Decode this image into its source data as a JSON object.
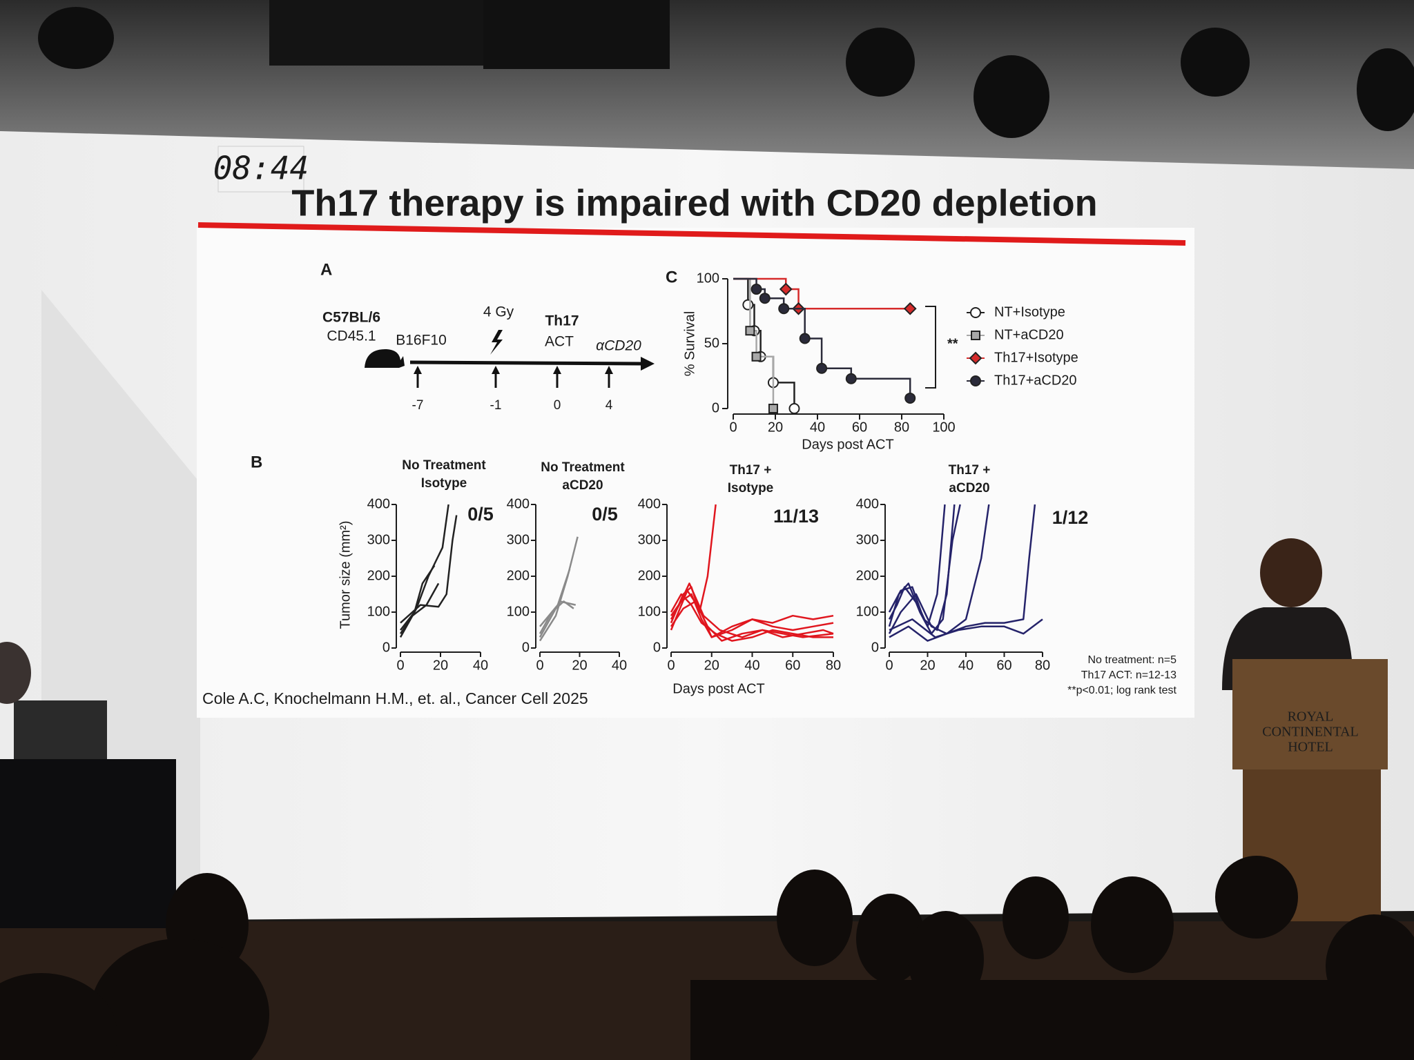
{
  "timer": "08:44",
  "slide": {
    "title": "Th17 therapy is impaired with CD20 depletion",
    "citation": "Cole A.C, Knochelmann H.M., et. al., Cancer Cell 2025",
    "notes": [
      "No treatment: n=5",
      "Th17 ACT: n=12-13",
      "**p<0.01; log rank test"
    ],
    "panel_a": {
      "label": "A",
      "strain": "C57BL/6",
      "strain_detail": "CD45.1",
      "events": [
        {
          "label": "B16F10",
          "day": -7
        },
        {
          "label": "4 Gy",
          "day": -1
        },
        {
          "label": "Th17",
          "sublabel": "ACT",
          "day": 0
        },
        {
          "label": "αCD20",
          "day": 4
        }
      ]
    },
    "panel_c": {
      "label": "C",
      "type": "step",
      "ylabel": "% Survival",
      "xlabel": "Days post ACT",
      "xlim": [
        0,
        100
      ],
      "xticks": [
        0,
        20,
        40,
        60,
        80,
        100
      ],
      "ylim": [
        0,
        100
      ],
      "yticks": [
        0,
        50,
        100
      ],
      "significance": "**",
      "series": [
        {
          "name": "NT+Isotype",
          "color": "#ffffff",
          "marker": "circle",
          "x": [
            0,
            7,
            10,
            13,
            19,
            29
          ],
          "values": [
            100,
            80,
            60,
            40,
            20,
            0
          ]
        },
        {
          "name": "NT+aCD20",
          "color": "#a8a8a8",
          "marker": "square",
          "x": [
            0,
            8,
            11,
            19
          ],
          "values": [
            100,
            60,
            40,
            0
          ]
        },
        {
          "name": "Th17+Isotype",
          "color": "#d62b2b",
          "marker": "diamond",
          "x": [
            0,
            25,
            31,
            84
          ],
          "values": [
            100,
            92,
            77,
            77
          ]
        },
        {
          "name": "Th17+aCD20",
          "color": "#2b2b3a",
          "marker": "circle",
          "x": [
            0,
            11,
            15,
            24,
            34,
            42,
            56,
            84
          ],
          "values": [
            100,
            92,
            85,
            77,
            54,
            31,
            23,
            8
          ]
        }
      ]
    },
    "panel_b": {
      "label": "B",
      "ylabel": "Tumor size (mm²)",
      "xlabel": "Days post ACT",
      "ylim": [
        0,
        400
      ],
      "yticks": [
        0,
        100,
        200,
        300,
        400
      ],
      "charts": [
        {
          "type": "line",
          "title": [
            "No Treatment",
            "Isotype"
          ],
          "ratio": "0/5",
          "ratio_color": "#1c1c1c",
          "color": "#222222",
          "xlim": [
            0,
            40
          ],
          "xticks": [
            0,
            20,
            40
          ],
          "lines": [
            {
              "x": [
                0,
                7,
                11,
                17
              ],
              "values": [
                50,
                100,
                180,
                230
              ]
            },
            {
              "x": [
                0,
                8,
                14,
                21,
                24
              ],
              "values": [
                30,
                110,
                200,
                280,
                400
              ]
            },
            {
              "x": [
                0,
                10,
                19,
                23,
                26,
                28
              ],
              "values": [
                70,
                120,
                115,
                150,
                300,
                370
              ]
            },
            {
              "x": [
                0,
                6,
                13,
                19
              ],
              "values": [
                40,
                90,
                120,
                180
              ]
            }
          ]
        },
        {
          "type": "line",
          "title": [
            "No Treatment",
            "aCD20"
          ],
          "ratio": "0/5",
          "ratio_color": "#1c1c1c",
          "color": "#8a8a8a",
          "xlim": [
            0,
            40
          ],
          "xticks": [
            0,
            20,
            40
          ],
          "lines": [
            {
              "x": [
                0,
                6,
                12,
                17
              ],
              "values": [
                40,
                100,
                130,
                110
              ]
            },
            {
              "x": [
                0,
                8,
                14,
                19
              ],
              "values": [
                20,
                90,
                200,
                310
              ]
            },
            {
              "x": [
                0,
                9,
                15
              ],
              "values": [
                60,
                120,
                220
              ]
            },
            {
              "x": [
                0,
                10,
                18
              ],
              "values": [
                30,
                130,
                120
              ]
            }
          ]
        },
        {
          "type": "line",
          "title": [
            "Th17 +",
            "Isotype"
          ],
          "ratio": "11/13",
          "ratio_color": "#d0202a",
          "color": "#e0161e",
          "xlim": [
            0,
            80
          ],
          "xticks": [
            0,
            20,
            40,
            60,
            80
          ],
          "lines": [
            {
              "x": [
                0,
                6,
                10,
                14,
                18,
                22
              ],
              "values": [
                70,
                150,
                170,
                100,
                200,
                400
              ]
            },
            {
              "x": [
                0,
                5,
                10,
                15,
                20,
                30,
                40,
                50,
                60,
                70,
                80
              ],
              "values": [
                90,
                130,
                150,
                80,
                30,
                60,
                80,
                70,
                90,
                80,
                90
              ]
            },
            {
              "x": [
                0,
                6,
                12,
                18,
                25,
                35,
                45,
                55,
                65,
                80
              ],
              "values": [
                60,
                110,
                130,
                60,
                20,
                40,
                50,
                40,
                30,
                40
              ]
            },
            {
              "x": [
                0,
                5,
                10,
                15,
                22,
                30,
                40,
                50,
                60,
                70,
                80
              ],
              "values": [
                100,
                150,
                120,
                70,
                40,
                20,
                30,
                50,
                40,
                30,
                30
              ]
            },
            {
              "x": [
                0,
                8,
                14,
                20,
                30,
                40,
                50,
                60,
                70,
                80
              ],
              "values": [
                50,
                160,
                110,
                30,
                50,
                80,
                60,
                50,
                60,
                70
              ]
            },
            {
              "x": [
                0,
                4,
                9,
                16,
                24,
                35,
                45,
                55,
                65,
                75,
                80
              ],
              "values": [
                80,
                120,
                180,
                90,
                50,
                30,
                50,
                30,
                40,
                50,
                40
              ]
            }
          ]
        },
        {
          "type": "line",
          "title": [
            "Th17 +",
            "aCD20"
          ],
          "ratio": "1/12",
          "ratio_color": "#2c2a5e",
          "color": "#25236a",
          "xlim": [
            0,
            80
          ],
          "xticks": [
            0,
            20,
            40,
            60,
            80
          ],
          "lines": [
            {
              "x": [
                0,
                6,
                12,
                18,
                25,
                30,
                34
              ],
              "values": [
                100,
                160,
                170,
                80,
                50,
                150,
                400
              ]
            },
            {
              "x": [
                0,
                5,
                10,
                16,
                22,
                28,
                33,
                37
              ],
              "values": [
                60,
                150,
                180,
                100,
                40,
                80,
                300,
                400
              ]
            },
            {
              "x": [
                0,
                4,
                8,
                15,
                20,
                25,
                29
              ],
              "values": [
                80,
                120,
                170,
                120,
                60,
                150,
                400
              ]
            },
            {
              "x": [
                0,
                6,
                14,
                22,
                30,
                40,
                48,
                52
              ],
              "values": [
                40,
                100,
                150,
                60,
                40,
                80,
                250,
                400
              ]
            },
            {
              "x": [
                0,
                10,
                20,
                30,
                40,
                50,
                60,
                70,
                73,
                76
              ],
              "values": [
                30,
                60,
                20,
                40,
                60,
                70,
                70,
                80,
                250,
                400
              ]
            },
            {
              "x": [
                0,
                12,
                24,
                36,
                48,
                60,
                70,
                80
              ],
              "values": [
                50,
                80,
                30,
                50,
                60,
                60,
                40,
                80
              ]
            }
          ]
        }
      ]
    }
  },
  "podium": {
    "lines": [
      "ROYAL",
      "CONTINENTAL",
      "HOTEL"
    ]
  }
}
